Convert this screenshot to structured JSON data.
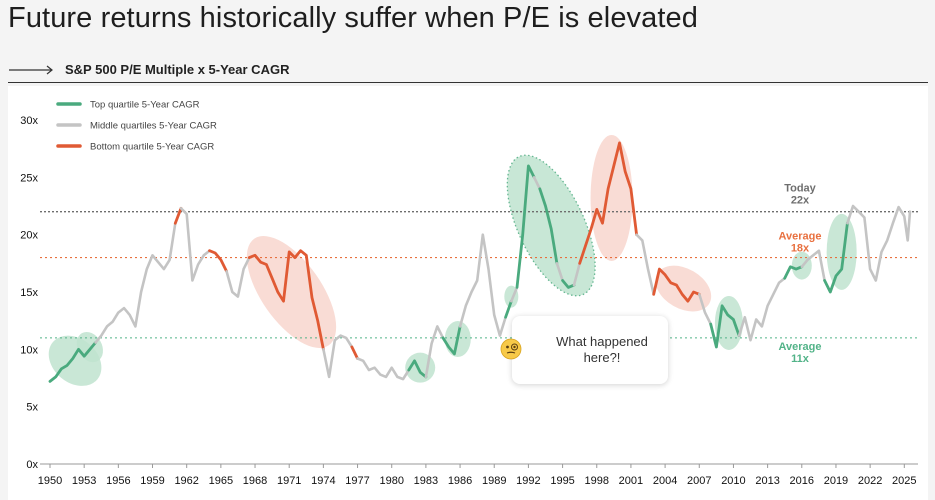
{
  "title": "Future returns historically suffer when P/E is elevated",
  "subtitle": "S&P 500 P/E Multiple x 5-Year CAGR",
  "colors": {
    "top": "#4aaa7e",
    "middle": "#c4c4c4",
    "bottom": "#e05a34",
    "top_fill": "#bfe3cf",
    "bottom_fill": "#f8d3cb",
    "today": "#6e6e6e",
    "avg18": "#e8703f",
    "avg11": "#52b388"
  },
  "legend": {
    "top": "Top quartile 5-Year CAGR",
    "middle": "Middle quartiles 5-Year CAGR",
    "bottom": "Bottom quartile 5-Year CAGR"
  },
  "ref_lines": {
    "today": {
      "line1": "Today",
      "line2": "22x"
    },
    "avg18": {
      "line1": "Average",
      "line2": "18x"
    },
    "avg11": {
      "line1": "Average",
      "line2": "11x"
    }
  },
  "callout": {
    "text": "What happened here?!",
    "emoji_icon": "face-with-monocle-icon"
  },
  "chart_data": {
    "type": "line",
    "title": "S&P 500 P/E Multiple x 5-Year CAGR",
    "xlim": [
      1950,
      2025.5
    ],
    "ylim": [
      0,
      30
    ],
    "x_ticks": [
      1950,
      1953,
      1956,
      1959,
      1962,
      1965,
      1968,
      1971,
      1974,
      1977,
      1980,
      1983,
      1986,
      1989,
      1992,
      1995,
      1998,
      2001,
      2004,
      2007,
      2010,
      2013,
      2016,
      2019,
      2022,
      2025
    ],
    "y_ticks": [
      0,
      5,
      10,
      15,
      20,
      25,
      30
    ],
    "y_tick_labels": [
      "0x",
      "5x",
      "10x",
      "15x",
      "20x",
      "25x",
      "30x"
    ],
    "reference_lines": [
      {
        "name": "Today",
        "value": 22,
        "style": "dotted"
      },
      {
        "name": "Average",
        "value": 18,
        "style": "dotted"
      },
      {
        "name": "Average",
        "value": 11,
        "style": "dotted"
      }
    ],
    "points": [
      [
        1950,
        7.2,
        "top"
      ],
      [
        1950.5,
        7.6,
        "top"
      ],
      [
        1951,
        8.3,
        "top"
      ],
      [
        1951.5,
        8.6,
        "top"
      ],
      [
        1952,
        9.2,
        "top"
      ],
      [
        1952.5,
        10.0,
        "top"
      ],
      [
        1953,
        9.4,
        "top"
      ],
      [
        1953.5,
        10.0,
        "top"
      ],
      [
        1954,
        10.6,
        "top"
      ],
      [
        1954.5,
        11.2,
        "middle"
      ],
      [
        1955,
        12.0,
        "middle"
      ],
      [
        1955.5,
        12.4,
        "middle"
      ],
      [
        1956,
        13.2,
        "middle"
      ],
      [
        1956.5,
        13.6,
        "middle"
      ],
      [
        1957,
        13.0,
        "middle"
      ],
      [
        1957.5,
        12.0,
        "middle"
      ],
      [
        1958,
        15.0,
        "middle"
      ],
      [
        1958.5,
        17.0,
        "middle"
      ],
      [
        1959,
        18.2,
        "middle"
      ],
      [
        1959.5,
        17.6,
        "middle"
      ],
      [
        1960,
        17.0,
        "middle"
      ],
      [
        1960.5,
        17.8,
        "middle"
      ],
      [
        1961,
        21.0,
        "middle"
      ],
      [
        1961.5,
        22.3,
        "bottom"
      ],
      [
        1962,
        21.8,
        "middle"
      ],
      [
        1962.5,
        16.0,
        "middle"
      ],
      [
        1963,
        17.4,
        "middle"
      ],
      [
        1963.5,
        18.2,
        "middle"
      ],
      [
        1964,
        18.6,
        "middle"
      ],
      [
        1964.5,
        18.4,
        "bottom"
      ],
      [
        1965,
        17.8,
        "bottom"
      ],
      [
        1965.5,
        16.8,
        "bottom"
      ],
      [
        1966,
        15.0,
        "middle"
      ],
      [
        1966.5,
        14.6,
        "middle"
      ],
      [
        1967,
        17.0,
        "middle"
      ],
      [
        1967.5,
        18.0,
        "middle"
      ],
      [
        1968,
        18.2,
        "bottom"
      ],
      [
        1968.5,
        17.6,
        "bottom"
      ],
      [
        1969,
        17.4,
        "bottom"
      ],
      [
        1969.5,
        16.2,
        "bottom"
      ],
      [
        1970,
        15.0,
        "bottom"
      ],
      [
        1970.5,
        14.2,
        "bottom"
      ],
      [
        1971,
        18.5,
        "bottom"
      ],
      [
        1971.5,
        18.0,
        "bottom"
      ],
      [
        1972,
        18.6,
        "bottom"
      ],
      [
        1972.5,
        18.2,
        "bottom"
      ],
      [
        1973,
        14.5,
        "bottom"
      ],
      [
        1973.5,
        12.5,
        "bottom"
      ],
      [
        1974,
        10.0,
        "bottom"
      ],
      [
        1974.5,
        7.6,
        "middle"
      ],
      [
        1975,
        10.8,
        "middle"
      ],
      [
        1975.5,
        11.2,
        "middle"
      ],
      [
        1976,
        11.0,
        "middle"
      ],
      [
        1976.5,
        10.2,
        "middle"
      ],
      [
        1977,
        9.2,
        "bottom"
      ],
      [
        1977.5,
        9.0,
        "middle"
      ],
      [
        1978,
        8.2,
        "middle"
      ],
      [
        1978.5,
        8.4,
        "middle"
      ],
      [
        1979,
        7.8,
        "middle"
      ],
      [
        1979.5,
        7.6,
        "middle"
      ],
      [
        1980,
        8.4,
        "middle"
      ],
      [
        1980.5,
        7.6,
        "middle"
      ],
      [
        1981,
        7.4,
        "middle"
      ],
      [
        1981.5,
        8.2,
        "middle"
      ],
      [
        1982,
        9.0,
        "top"
      ],
      [
        1982.5,
        8.0,
        "top"
      ],
      [
        1983,
        7.6,
        "top"
      ],
      [
        1983.5,
        10.5,
        "middle"
      ],
      [
        1984,
        12.0,
        "middle"
      ],
      [
        1984.5,
        11.0,
        "middle"
      ],
      [
        1985,
        10.2,
        "top"
      ],
      [
        1985.5,
        9.6,
        "top"
      ],
      [
        1986,
        12.0,
        "top"
      ],
      [
        1986.5,
        13.8,
        "middle"
      ],
      [
        1987,
        15.0,
        "middle"
      ],
      [
        1987.5,
        16.0,
        "middle"
      ],
      [
        1988,
        20.0,
        "middle"
      ],
      [
        1988.5,
        17.0,
        "middle"
      ],
      [
        1989,
        13.0,
        "middle"
      ],
      [
        1989.5,
        11.2,
        "middle"
      ],
      [
        1990,
        12.8,
        "middle"
      ],
      [
        1990.5,
        14.2,
        "top"
      ],
      [
        1991,
        15.4,
        "middle"
      ],
      [
        1991.5,
        20.0,
        "top"
      ],
      [
        1992,
        26.0,
        "top"
      ],
      [
        1992.5,
        25.0,
        "top"
      ],
      [
        1993,
        24.0,
        "middle"
      ],
      [
        1993.5,
        22.5,
        "top"
      ],
      [
        1994,
        20.5,
        "top"
      ],
      [
        1994.5,
        17.5,
        "top"
      ],
      [
        1995,
        16.0,
        "middle"
      ],
      [
        1995.5,
        15.4,
        "top"
      ],
      [
        1996,
        15.6,
        "top"
      ],
      [
        1996.5,
        17.5,
        "middle"
      ],
      [
        1997,
        19.0,
        "bottom"
      ],
      [
        1997.5,
        20.5,
        "bottom"
      ],
      [
        1998,
        22.2,
        "bottom"
      ],
      [
        1998.5,
        21.0,
        "bottom"
      ],
      [
        1999,
        24.0,
        "bottom"
      ],
      [
        1999.5,
        26.0,
        "bottom"
      ],
      [
        2000,
        28.0,
        "bottom"
      ],
      [
        2000.5,
        25.5,
        "bottom"
      ],
      [
        2001,
        24.0,
        "bottom"
      ],
      [
        2001.5,
        20.0,
        "bottom"
      ],
      [
        2002,
        19.5,
        "middle"
      ],
      [
        2002.5,
        17.0,
        "middle"
      ],
      [
        2003,
        14.8,
        "middle"
      ],
      [
        2003.5,
        17.0,
        "bottom"
      ],
      [
        2004,
        16.5,
        "bottom"
      ],
      [
        2004.5,
        15.8,
        "bottom"
      ],
      [
        2005,
        15.6,
        "bottom"
      ],
      [
        2005.5,
        14.8,
        "bottom"
      ],
      [
        2006,
        14.2,
        "bottom"
      ],
      [
        2006.5,
        15.0,
        "bottom"
      ],
      [
        2007,
        14.8,
        "bottom"
      ],
      [
        2007.5,
        13.2,
        "middle"
      ],
      [
        2008,
        12.2,
        "middle"
      ],
      [
        2008.5,
        10.2,
        "top"
      ],
      [
        2009,
        13.8,
        "top"
      ],
      [
        2009.5,
        13.0,
        "top"
      ],
      [
        2010,
        12.6,
        "top"
      ],
      [
        2010.5,
        11.2,
        "top"
      ],
      [
        2011,
        12.8,
        "middle"
      ],
      [
        2011.5,
        10.8,
        "middle"
      ],
      [
        2012,
        12.6,
        "middle"
      ],
      [
        2012.5,
        12.0,
        "middle"
      ],
      [
        2013,
        13.8,
        "middle"
      ],
      [
        2013.5,
        14.8,
        "middle"
      ],
      [
        2014,
        15.8,
        "middle"
      ],
      [
        2014.5,
        16.2,
        "middle"
      ],
      [
        2015,
        17.2,
        "top"
      ],
      [
        2015.5,
        17.0,
        "top"
      ],
      [
        2016,
        17.2,
        "top"
      ],
      [
        2016.5,
        17.8,
        "middle"
      ],
      [
        2017,
        18.2,
        "middle"
      ],
      [
        2017.5,
        18.6,
        "middle"
      ],
      [
        2018,
        16.0,
        "middle"
      ],
      [
        2018.5,
        15.0,
        "top"
      ],
      [
        2019,
        16.4,
        "top"
      ],
      [
        2019.5,
        17.0,
        "top"
      ],
      [
        2020,
        21.0,
        "top"
      ],
      [
        2020.5,
        22.5,
        "middle"
      ],
      [
        2021,
        22.0,
        "middle"
      ],
      [
        2021.5,
        21.5,
        "middle"
      ],
      [
        2022,
        17.0,
        "middle"
      ],
      [
        2022.5,
        16.0,
        "middle"
      ],
      [
        2023,
        18.5,
        "middle"
      ],
      [
        2023.5,
        19.5,
        "middle"
      ],
      [
        2024,
        21.0,
        "middle"
      ],
      [
        2024.5,
        22.4,
        "middle"
      ],
      [
        2025,
        21.6,
        "middle"
      ],
      [
        2025.3,
        19.5,
        "middle"
      ],
      [
        2025.5,
        22.0,
        "middle"
      ]
    ]
  }
}
